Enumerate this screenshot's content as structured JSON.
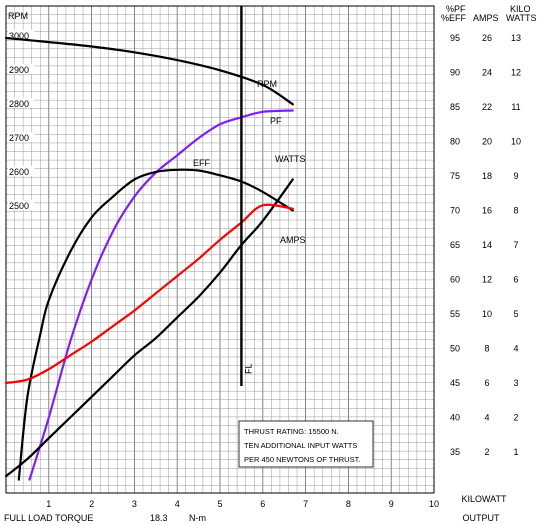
{
  "chart_data": {
    "type": "line",
    "x_axis": {
      "min": 0,
      "max": 10,
      "ticks": [
        "1",
        "2",
        "3",
        "4",
        "5",
        "6",
        "7",
        "8",
        "9",
        "10"
      ],
      "title_line1": "KILOWATT",
      "title_line2": "OUTPUT"
    },
    "footer": {
      "label": "FULL LOAD TORQUE",
      "value": "18.3",
      "unit": "N-m"
    },
    "left_axis": {
      "label": "RPM",
      "min": 2300,
      "max": 3050,
      "ticks": [
        "3000",
        "2900",
        "2800",
        "2700",
        "2600",
        "2500"
      ]
    },
    "right_axes": {
      "pf_eff": {
        "header1": "%PF",
        "header2": "%EFF",
        "ticks": [
          "95",
          "90",
          "85",
          "80",
          "75",
          "70",
          "65",
          "60",
          "55",
          "50",
          "45",
          "40",
          "35"
        ]
      },
      "amps": {
        "header": "AMPS",
        "ticks": [
          "26",
          "24",
          "22",
          "20",
          "18",
          "16",
          "14",
          "12",
          "10",
          "8",
          "6",
          "4",
          "2"
        ]
      },
      "kw": {
        "header1": "KILO",
        "header2": "WATTS",
        "ticks": [
          "13",
          "12",
          "11",
          "10",
          "9",
          "8",
          "7",
          "6",
          "5",
          "4",
          "3",
          "2",
          "1"
        ]
      }
    },
    "full_load": {
      "x": 5.5,
      "label": "FL"
    },
    "series": [
      {
        "name": "RPM",
        "color": "#000000",
        "scale": "rpm",
        "points": [
          [
            0,
            3000
          ],
          [
            1,
            2988
          ],
          [
            2,
            2975
          ],
          [
            3,
            2958
          ],
          [
            4,
            2935
          ],
          [
            5,
            2905
          ],
          [
            6,
            2862
          ],
          [
            6.7,
            2805
          ]
        ]
      },
      {
        "name": "PF",
        "color": "#7f1fff",
        "scale": "pct",
        "points": [
          [
            0.55,
            31
          ],
          [
            1,
            40
          ],
          [
            1.5,
            51
          ],
          [
            2,
            60
          ],
          [
            2.5,
            67
          ],
          [
            3,
            72
          ],
          [
            3.5,
            75.5
          ],
          [
            4,
            78
          ],
          [
            4.5,
            80.5
          ],
          [
            5,
            82.5
          ],
          [
            5.5,
            83.5
          ],
          [
            6,
            84.3
          ],
          [
            6.7,
            84.5
          ]
        ]
      },
      {
        "name": "EFF",
        "color": "#000000",
        "scale": "pct",
        "points": [
          [
            0.3,
            31
          ],
          [
            0.5,
            43
          ],
          [
            0.8,
            52
          ],
          [
            1,
            57
          ],
          [
            1.5,
            64
          ],
          [
            2,
            69
          ],
          [
            2.5,
            72
          ],
          [
            3,
            74.5
          ],
          [
            3.5,
            75.6
          ],
          [
            4,
            75.9
          ],
          [
            4.5,
            75.8
          ],
          [
            5,
            75.1
          ],
          [
            5.5,
            74.2
          ],
          [
            6,
            72.7
          ],
          [
            6.7,
            70
          ]
        ]
      },
      {
        "name": "WATTS",
        "color": "#000000",
        "scale": "kw",
        "points": [
          [
            0,
            0.3
          ],
          [
            0.5,
            0.8
          ],
          [
            1,
            1.4
          ],
          [
            1.5,
            2.0
          ],
          [
            2,
            2.6
          ],
          [
            2.5,
            3.2
          ],
          [
            3,
            3.8
          ],
          [
            3.5,
            4.3
          ],
          [
            4,
            4.9
          ],
          [
            4.5,
            5.5
          ],
          [
            5,
            6.2
          ],
          [
            5.5,
            7.0
          ],
          [
            6,
            7.7
          ],
          [
            6.7,
            8.9
          ]
        ]
      },
      {
        "name": "AMPS",
        "color": "#ff0000",
        "scale": "amps",
        "points": [
          [
            0,
            6
          ],
          [
            0.5,
            6.2
          ],
          [
            1,
            6.8
          ],
          [
            1.5,
            7.6
          ],
          [
            2,
            8.4
          ],
          [
            2.5,
            9.3
          ],
          [
            3,
            10.2
          ],
          [
            3.5,
            11.2
          ],
          [
            4,
            12.2
          ],
          [
            4.5,
            13.2
          ],
          [
            5,
            14.3
          ],
          [
            5.5,
            15.3
          ],
          [
            6,
            16.3
          ],
          [
            6.7,
            16.1
          ]
        ]
      }
    ],
    "notes": [
      "THRUST RATING:  15500 N.",
      "TEN ADDITIONAL INPUT WATTS",
      "PER 450 NEWTONS OF THRUST."
    ]
  }
}
